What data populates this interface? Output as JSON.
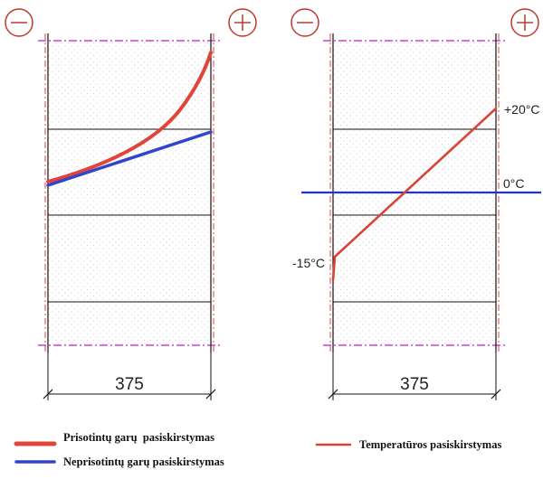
{
  "colors": {
    "saturated": "#e0443a",
    "unsaturated": "#3344cc",
    "temperature": "#d9443a",
    "zero_line": "#2233cc",
    "symbol": "#c0392b",
    "boundary": "#cc44cc"
  },
  "left_panel": {
    "minus_symbol": "−",
    "plus_symbol": "+",
    "dimension": "375"
  },
  "right_panel": {
    "minus_symbol": "−",
    "plus_symbol": "+",
    "dimension": "375",
    "label_outer_temp": "+20°C",
    "label_zero": "0°C",
    "label_inner_temp": "-15°C"
  },
  "legend": {
    "saturated": "Prisotintų garų  pasiskirstymas",
    "unsaturated": "Neprisotintų garų pasiskirstymas",
    "temperature": "Temperatūros pasiskirstymas"
  }
}
